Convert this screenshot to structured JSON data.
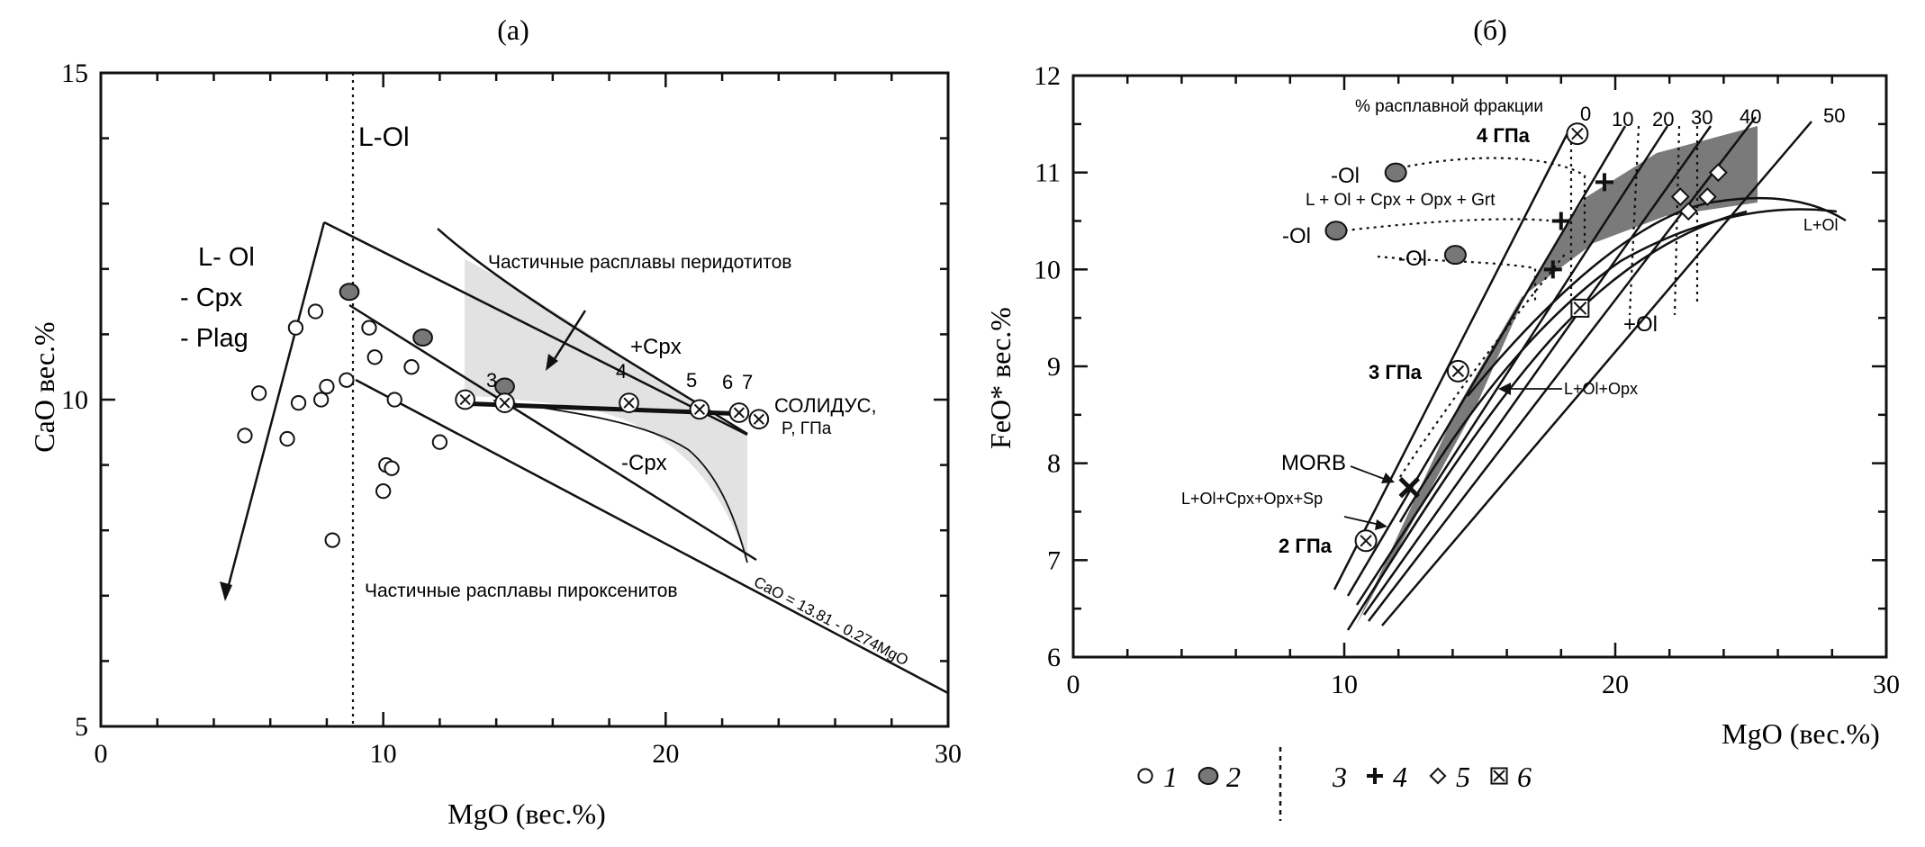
{
  "chart_data": [
    {
      "type": "scatter",
      "title": "(a)",
      "xlabel": "MgO (вес.%)",
      "ylabel": "CaO вес.%",
      "xlim": [
        0,
        30
      ],
      "ylim": [
        5,
        15
      ],
      "xticks": [
        "0",
        "10",
        "20",
        "30"
      ],
      "yticks": [
        "5",
        "10",
        "15"
      ],
      "annotations": {
        "l_ol_line": "L-Ol",
        "l_ol_cpx_plag": [
          "L- Ol",
          "- Cpx",
          "- Plag"
        ],
        "peridotite": "Частичные расплавы перидотитов",
        "pyroxenite": "Частичные расплавы пироксенитов",
        "plus_cpx": "+Cpx",
        "minus_cpx": "-Cpx",
        "solidus": [
          "СОЛИДУС,",
          "P, ГПа"
        ],
        "solidus_pressures": [
          "3",
          "4",
          "5",
          "6",
          "7"
        ],
        "equation": "CaO = 13.81 - 0.274MgO"
      },
      "series": [
        {
          "name": "1",
          "marker": "open-circle",
          "points": [
            [
              5.1,
              9.45
            ],
            [
              5.6,
              10.1
            ],
            [
              6.6,
              9.4
            ],
            [
              6.9,
              11.1
            ],
            [
              7.0,
              9.95
            ],
            [
              7.6,
              11.35
            ],
            [
              7.8,
              10.0
            ],
            [
              8.0,
              10.2
            ],
            [
              8.2,
              7.85
            ],
            [
              8.7,
              10.3
            ],
            [
              9.5,
              11.1
            ],
            [
              9.7,
              10.65
            ],
            [
              10.0,
              8.6
            ],
            [
              10.1,
              9.0
            ],
            [
              10.3,
              8.95
            ],
            [
              10.4,
              10.0
            ],
            [
              11.0,
              10.5
            ],
            [
              12.0,
              9.35
            ]
          ]
        },
        {
          "name": "2",
          "marker": "filled-circle",
          "points": [
            [
              8.8,
              11.65
            ],
            [
              11.4,
              10.95
            ],
            [
              14.3,
              10.2
            ]
          ]
        },
        {
          "name": "solidus",
          "marker": "crossed-circle",
          "points": [
            [
              12.9,
              10.0
            ],
            [
              14.3,
              9.95
            ],
            [
              18.7,
              9.95
            ],
            [
              21.2,
              9.85
            ],
            [
              22.6,
              9.8
            ],
            [
              23.3,
              9.7
            ]
          ]
        }
      ]
    },
    {
      "type": "scatter",
      "title": "(б)",
      "xlabel": "MgO (вес.%)",
      "ylabel": "FeO* вес.%",
      "xlim": [
        0,
        30
      ],
      "ylim": [
        6,
        12
      ],
      "xticks": [
        "0",
        "10",
        "20",
        "30"
      ],
      "yticks": [
        "6",
        "7",
        "8",
        "9",
        "10",
        "11",
        "12"
      ],
      "annotations": {
        "melt_fraction": "% расплавной фракции",
        "melt_fraction_values": [
          "0",
          "10",
          "20",
          "30",
          "40",
          "50"
        ],
        "minus_ol": [
          "-Ol",
          "-Ol",
          "-Ol"
        ],
        "assemblage_grt": "L + Ol + Cpx + Opx + Grt",
        "assemblage_sp": "L+Ol+Cpx+Opx+Sp",
        "l_ol": "L+Ol",
        "plus_ol": "+Ol",
        "l_ol_opx": "L+Ol+Opx",
        "morb": "MORB",
        "pressures": [
          "4 ГПа",
          "3 ГПа",
          "2 ГПа"
        ]
      },
      "series": [
        {
          "name": "2",
          "marker": "filled-circle",
          "points": [
            [
              11.9,
              11.0
            ],
            [
              9.7,
              10.4
            ],
            [
              14.1,
              10.15
            ]
          ]
        },
        {
          "name": "3",
          "marker": "crossed-circle",
          "points": [
            [
              18.6,
              11.4
            ],
            [
              14.2,
              8.95
            ],
            [
              10.8,
              7.2
            ]
          ]
        },
        {
          "name": "4",
          "marker": "plus",
          "points": [
            [
              19.6,
              10.9
            ],
            [
              18.0,
              10.5
            ],
            [
              17.7,
              10.0
            ]
          ]
        },
        {
          "name": "5",
          "marker": "diamond",
          "points": [
            [
              22.4,
              10.75
            ],
            [
              22.7,
              10.6
            ],
            [
              23.4,
              10.75
            ],
            [
              23.8,
              11.0
            ]
          ]
        },
        {
          "name": "6",
          "marker": "boxed-x",
          "points": [
            [
              18.7,
              9.6
            ]
          ]
        },
        {
          "name": "MORB",
          "marker": "bold-x",
          "points": [
            [
              12.4,
              7.75
            ]
          ]
        }
      ]
    }
  ],
  "legend": {
    "items": [
      {
        "marker": "open-circle",
        "label": "1"
      },
      {
        "marker": "filled-circle",
        "label": "2"
      },
      {
        "marker": "none",
        "label": "3"
      },
      {
        "marker": "plus",
        "label": "4"
      },
      {
        "marker": "diamond",
        "label": "5"
      },
      {
        "marker": "boxed-x",
        "label": "6"
      }
    ]
  }
}
